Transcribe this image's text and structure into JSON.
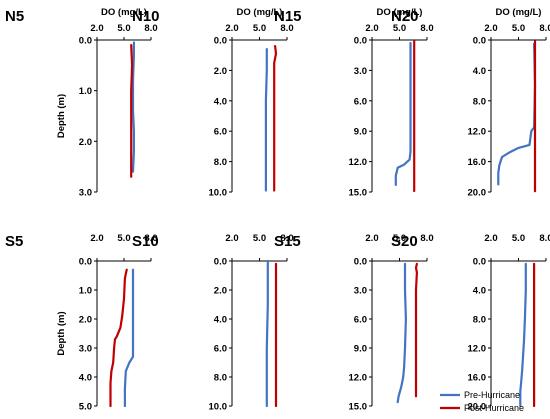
{
  "chart_data": {
    "type": "line",
    "legend_position": "bottom-right",
    "legend": [
      {
        "name": "Pre-Hurricane",
        "color": "#4472c4"
      },
      {
        "name": "Post-Hurricane",
        "color": "#c00000"
      }
    ],
    "panels": [
      {
        "title": "N5",
        "xlabel": "DO (mg/L)",
        "ylabel": "Depth (m)",
        "xlim": [
          2,
          8
        ],
        "xticks": [
          "2.0",
          "5.0",
          "8.0"
        ],
        "ylim": [
          0,
          3
        ],
        "yticks": [
          "0.0",
          "1.0",
          "2.0",
          "3.0"
        ],
        "series": [
          {
            "name": "Pre-Hurricane",
            "points": [
              [
                6.1,
                0.05
              ],
              [
                6.1,
                0.3
              ],
              [
                6.0,
                0.8
              ],
              [
                6.0,
                1.4
              ],
              [
                6.1,
                1.8
              ],
              [
                6.1,
                2.2
              ],
              [
                6.0,
                2.6
              ]
            ]
          },
          {
            "name": "Post-Hurricane",
            "points": [
              [
                5.8,
                0.1
              ],
              [
                5.9,
                0.5
              ],
              [
                5.8,
                1.0
              ],
              [
                5.8,
                1.6
              ],
              [
                5.8,
                2.2
              ],
              [
                5.8,
                2.7
              ]
            ]
          }
        ]
      },
      {
        "title": "N10",
        "xlabel": "DO (mg/L)",
        "ylabel": "",
        "xlim": [
          2,
          8
        ],
        "xticks": [
          "2.0",
          "5.0",
          "8.0"
        ],
        "ylim": [
          0,
          10
        ],
        "yticks": [
          "0.0",
          "2.0",
          "4.0",
          "6.0",
          "8.0",
          "10.0"
        ],
        "series": [
          {
            "name": "Pre-Hurricane",
            "points": [
              [
                5.8,
                0.6
              ],
              [
                5.8,
                2.0
              ],
              [
                5.7,
                4.0
              ],
              [
                5.7,
                6.0
              ],
              [
                5.7,
                8.0
              ],
              [
                5.7,
                9.9
              ]
            ]
          },
          {
            "name": "Post-Hurricane",
            "points": [
              [
                6.7,
                0.4
              ],
              [
                6.8,
                0.9
              ],
              [
                6.6,
                1.5
              ],
              [
                6.6,
                4.0
              ],
              [
                6.6,
                7.0
              ],
              [
                6.6,
                9.9
              ]
            ]
          }
        ]
      },
      {
        "title": "N15",
        "xlabel": "DO (mg/L)",
        "ylabel": "",
        "xlim": [
          2,
          8
        ],
        "xticks": [
          "2.0",
          "5.0",
          "8.0"
        ],
        "ylim": [
          0,
          15
        ],
        "yticks": [
          "0.0",
          "3.0",
          "6.0",
          "9.0",
          "12.0",
          "15.0"
        ],
        "series": [
          {
            "name": "Pre-Hurricane",
            "points": [
              [
                6.2,
                0.3
              ],
              [
                6.2,
                6.0
              ],
              [
                6.2,
                11.0
              ],
              [
                6.1,
                11.8
              ],
              [
                5.5,
                12.3
              ],
              [
                4.8,
                12.6
              ],
              [
                4.6,
                13.4
              ],
              [
                4.6,
                14.3
              ]
            ]
          },
          {
            "name": "Post-Hurricane",
            "points": [
              [
                6.6,
                0.1
              ],
              [
                6.6,
                5.0
              ],
              [
                6.6,
                10.0
              ],
              [
                6.6,
                14.9
              ]
            ]
          }
        ]
      },
      {
        "title": "N20",
        "xlabel": "DO (mg/L)",
        "ylabel": "",
        "xlim": [
          2,
          8
        ],
        "xticks": [
          "2.0",
          "5.0",
          "8.0"
        ],
        "ylim": [
          0,
          20
        ],
        "yticks": [
          "0.0",
          "4.0",
          "8.0",
          "12.0",
          "16.0",
          "20.0"
        ],
        "series": [
          {
            "name": "Pre-Hurricane",
            "points": [
              [
                6.7,
                0.5
              ],
              [
                6.8,
                6.0
              ],
              [
                6.7,
                11.5
              ],
              [
                6.4,
                12.0
              ],
              [
                6.2,
                13.8
              ],
              [
                5.0,
                14.2
              ],
              [
                4.0,
                14.8
              ],
              [
                3.2,
                15.4
              ],
              [
                2.9,
                16.5
              ],
              [
                2.8,
                17.5
              ],
              [
                2.8,
                19.0
              ]
            ]
          },
          {
            "name": "Post-Hurricane",
            "points": [
              [
                6.8,
                0.2
              ],
              [
                6.8,
                5.0
              ],
              [
                6.8,
                10.0
              ],
              [
                6.8,
                15.0
              ],
              [
                6.8,
                19.9
              ]
            ]
          }
        ]
      },
      {
        "title": "S5",
        "xlabel": "",
        "ylabel": "Depth (m)",
        "xlim": [
          2,
          8
        ],
        "xticks": [
          "2.0",
          "5.0",
          "8.0"
        ],
        "ylim": [
          0,
          5
        ],
        "yticks": [
          "0.0",
          "1.0",
          "2.0",
          "3.0",
          "4.0",
          "5.0"
        ],
        "series": [
          {
            "name": "Pre-Hurricane",
            "points": [
              [
                6.0,
                0.3
              ],
              [
                6.0,
                1.5
              ],
              [
                6.0,
                2.3
              ],
              [
                6.0,
                3.0
              ],
              [
                6.0,
                3.3
              ],
              [
                5.6,
                3.5
              ],
              [
                5.2,
                3.8
              ],
              [
                5.1,
                4.4
              ],
              [
                5.1,
                5.0
              ]
            ]
          },
          {
            "name": "Post-Hurricane",
            "points": [
              [
                5.3,
                0.3
              ],
              [
                5.1,
                0.6
              ],
              [
                5.0,
                1.3
              ],
              [
                4.8,
                1.9
              ],
              [
                4.6,
                2.3
              ],
              [
                4.2,
                2.6
              ],
              [
                4.0,
                2.7
              ],
              [
                3.9,
                3.0
              ],
              [
                3.8,
                3.5
              ],
              [
                3.6,
                3.8
              ],
              [
                3.5,
                4.2
              ],
              [
                3.5,
                5.0
              ]
            ]
          }
        ]
      },
      {
        "title": "S10",
        "xlabel": "",
        "ylabel": "",
        "xlim": [
          2,
          8
        ],
        "xticks": [
          "2.0",
          "5.0",
          "8.0"
        ],
        "ylim": [
          0,
          10
        ],
        "yticks": [
          "0.0",
          "2.0",
          "4.0",
          "6.0",
          "8.0",
          "10.0"
        ],
        "series": [
          {
            "name": "Pre-Hurricane",
            "points": [
              [
                5.9,
                0.0
              ],
              [
                5.9,
                3.0
              ],
              [
                5.8,
                6.0
              ],
              [
                5.8,
                8.5
              ],
              [
                5.8,
                10.0
              ]
            ]
          },
          {
            "name": "Post-Hurricane",
            "points": [
              [
                6.8,
                0.2
              ],
              [
                6.8,
                5.0
              ],
              [
                6.8,
                10.0
              ]
            ]
          }
        ]
      },
      {
        "title": "S15",
        "xlabel": "",
        "ylabel": "",
        "xlim": [
          2,
          8
        ],
        "xticks": [
          "2.0",
          "5.0",
          "8.0"
        ],
        "ylim": [
          0,
          15
        ],
        "yticks": [
          "0.0",
          "3.0",
          "6.0",
          "9.0",
          "12.0",
          "15.0"
        ],
        "series": [
          {
            "name": "Pre-Hurricane",
            "points": [
              [
                5.6,
                0.3
              ],
              [
                5.6,
                3.0
              ],
              [
                5.7,
                6.0
              ],
              [
                5.6,
                9.0
              ],
              [
                5.5,
                11.0
              ],
              [
                5.4,
                12.0
              ],
              [
                5.2,
                13.0
              ],
              [
                4.9,
                14.0
              ],
              [
                4.8,
                14.6
              ]
            ]
          },
          {
            "name": "Post-Hurricane",
            "points": [
              [
                6.9,
                0.3
              ],
              [
                6.8,
                0.7
              ],
              [
                6.9,
                1.2
              ],
              [
                6.8,
                3.0
              ],
              [
                6.8,
                8.0
              ],
              [
                6.8,
                14.0
              ]
            ]
          }
        ]
      },
      {
        "title": "S20",
        "xlabel": "",
        "ylabel": "",
        "xlim": [
          2,
          8
        ],
        "xticks": [
          "2.0",
          "5.0",
          "8.0"
        ],
        "ylim": [
          0,
          20
        ],
        "yticks": [
          "0.0",
          "4.0",
          "8.0",
          "12.0",
          "16.0",
          "20.0"
        ],
        "series": [
          {
            "name": "Pre-Hurricane",
            "points": [
              [
                5.8,
                0.4
              ],
              [
                5.8,
                4.0
              ],
              [
                5.7,
                8.0
              ],
              [
                5.6,
                11.0
              ],
              [
                5.5,
                13.0
              ],
              [
                5.4,
                15.0
              ],
              [
                5.3,
                16.5
              ],
              [
                5.2,
                18.0
              ],
              [
                5.2,
                20.0
              ]
            ]
          },
          {
            "name": "Post-Hurricane",
            "points": [
              [
                6.7,
                0.4
              ],
              [
                6.7,
                5.0
              ],
              [
                6.7,
                10.0
              ],
              [
                6.7,
                15.0
              ],
              [
                6.7,
                20.0
              ]
            ]
          }
        ]
      }
    ]
  }
}
